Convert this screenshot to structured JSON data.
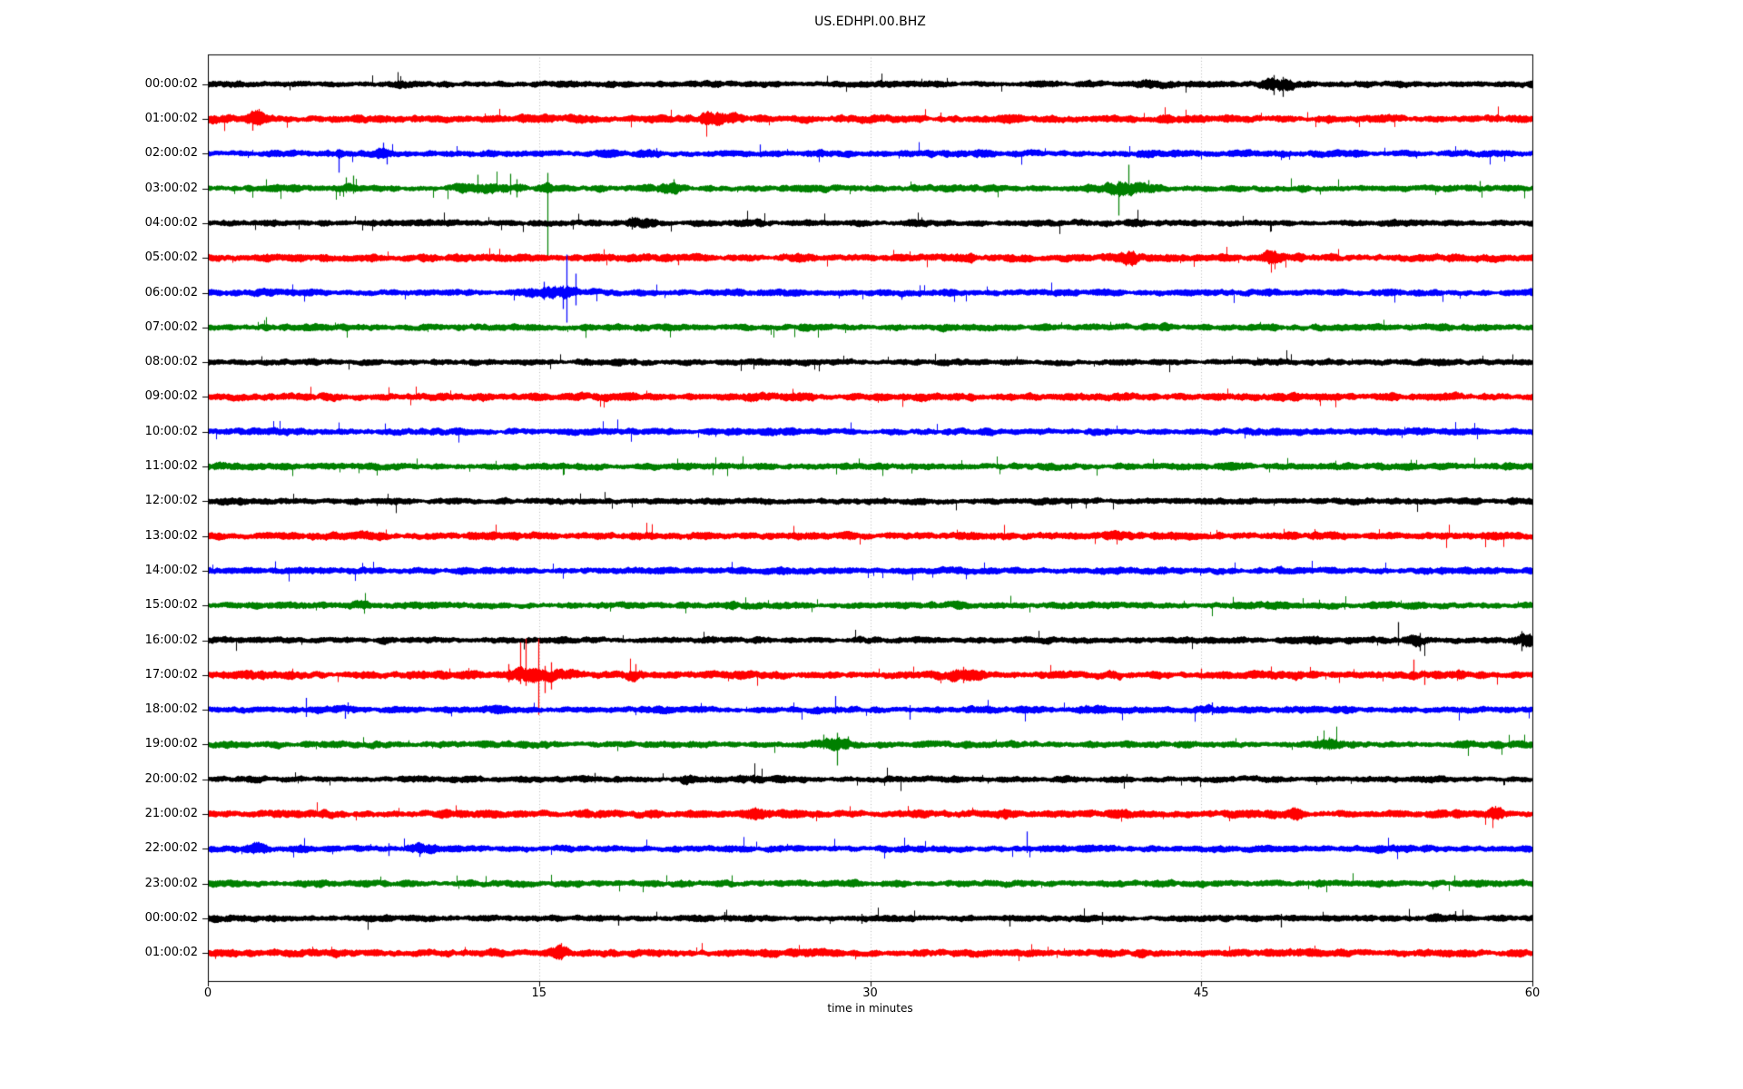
{
  "title": "US.EDHPI.00.BHZ",
  "xlabel": "time in minutes",
  "chart_data": {
    "type": "line",
    "subtype": "helicorder-seismogram",
    "title": "US.EDHPI.00.BHZ",
    "xlabel": "time in minutes",
    "x_range_minutes": [
      0,
      60
    ],
    "xticks": [
      0,
      15,
      30,
      45,
      60
    ],
    "xtick_labels": [
      "0",
      "15",
      "30",
      "45",
      "60"
    ],
    "grid": {
      "vertical_at_minutes": [
        15,
        30,
        45
      ],
      "style": "dotted",
      "color": "#b0b0b0"
    },
    "color_cycle": [
      "#000000",
      "#ff0000",
      "#0000ff",
      "#008000"
    ],
    "traces": [
      {
        "label": "00:00:02",
        "color": "#000000",
        "base_amp": 3.0,
        "events": [
          {
            "type": "burst",
            "m": 42.8,
            "dur": 1.8,
            "amp": 1.5
          },
          {
            "type": "burst",
            "m": 48.5,
            "dur": 1.1,
            "amp": 2.6
          },
          {
            "type": "spike",
            "m": 48.3,
            "up": 10,
            "down": 12
          },
          {
            "type": "spike",
            "m": 48.7,
            "up": 8,
            "down": 14
          }
        ]
      },
      {
        "label": "01:00:02",
        "color": "#ff0000",
        "base_amp": 3.6,
        "events": [
          {
            "type": "burst",
            "m": 2.15,
            "dur": 0.6,
            "amp": 2.2
          },
          {
            "type": "spike",
            "m": 2.0,
            "up": 6,
            "down": 13
          },
          {
            "type": "spike",
            "m": 2.3,
            "up": 11,
            "down": 6
          },
          {
            "type": "burst",
            "m": 22.9,
            "dur": 1.1,
            "amp": 1.9
          },
          {
            "type": "burst",
            "m": 23.9,
            "dur": 0.5,
            "amp": 1.6
          },
          {
            "type": "spike",
            "m": 33.2,
            "up": 7,
            "down": 4
          },
          {
            "type": "burst",
            "m": 47.4,
            "dur": 0.5,
            "amp": 1.6
          }
        ]
      },
      {
        "label": "02:00:02",
        "color": "#0000ff",
        "base_amp": 3.2,
        "events": [
          {
            "type": "spike",
            "m": 5.92,
            "up": 5,
            "down": 21
          },
          {
            "type": "burst",
            "m": 5.92,
            "dur": 0.3,
            "amp": 1.5
          },
          {
            "type": "burst",
            "m": 7.9,
            "dur": 0.8,
            "amp": 1.6
          },
          {
            "type": "spike",
            "m": 7.95,
            "up": 12,
            "down": 5
          },
          {
            "type": "spike",
            "m": 8.1,
            "up": 4,
            "down": 12
          },
          {
            "type": "spike",
            "m": 20.3,
            "up": 6,
            "down": 3
          },
          {
            "type": "spike",
            "m": 25.0,
            "up": 10,
            "down": 4
          }
        ]
      },
      {
        "label": "03:00:02",
        "color": "#008000",
        "base_amp": 3.2,
        "events": [
          {
            "type": "spike",
            "m": 6.25,
            "up": 12,
            "down": 5
          },
          {
            "type": "spike",
            "m": 6.6,
            "up": 14,
            "down": 6
          },
          {
            "type": "burst",
            "m": 6.4,
            "dur": 0.7,
            "amp": 1.5
          },
          {
            "type": "spike",
            "m": 12.2,
            "up": 15,
            "down": 6
          },
          {
            "type": "burst",
            "m": 13.0,
            "dur": 2.4,
            "amp": 1.7
          },
          {
            "type": "spike",
            "m": 13.7,
            "up": 16,
            "down": 7
          },
          {
            "type": "spike",
            "m": 14.0,
            "up": 10,
            "down": 10
          },
          {
            "type": "spike",
            "m": 15.38,
            "up": 17,
            "down": 76
          },
          {
            "type": "burst",
            "m": 15.38,
            "dur": 0.4,
            "amp": 1.8
          },
          {
            "type": "burst",
            "m": 21.0,
            "dur": 1.0,
            "amp": 1.8
          },
          {
            "type": "spike",
            "m": 21.1,
            "up": 10,
            "down": 6
          },
          {
            "type": "burst",
            "m": 41.5,
            "dur": 1.6,
            "amp": 2.1
          },
          {
            "type": "spike",
            "m": 41.25,
            "up": 8,
            "down": 30
          },
          {
            "type": "spike",
            "m": 41.7,
            "up": 26,
            "down": 8
          },
          {
            "type": "spike",
            "m": 42.6,
            "up": 9,
            "down": 5
          },
          {
            "type": "spike",
            "m": 57.6,
            "up": 8,
            "down": 4
          }
        ]
      },
      {
        "label": "04:00:02",
        "color": "#000000",
        "base_amp": 3.0,
        "events": [
          {
            "type": "burst",
            "m": 19.4,
            "dur": 1.5,
            "amp": 1.6
          },
          {
            "type": "spike",
            "m": 19.2,
            "up": 7,
            "down": 7
          },
          {
            "type": "burst",
            "m": 42.5,
            "dur": 3.0,
            "amp": 1.25
          }
        ]
      },
      {
        "label": "05:00:02",
        "color": "#ff0000",
        "base_amp": 3.6,
        "events": [
          {
            "type": "spike",
            "m": 21.3,
            "up": 4,
            "down": 8
          },
          {
            "type": "burst",
            "m": 41.8,
            "dur": 0.7,
            "amp": 2.0
          },
          {
            "type": "burst",
            "m": 48.1,
            "dur": 0.6,
            "amp": 2.0
          },
          {
            "type": "spike",
            "m": 48.0,
            "up": 9,
            "down": 5
          }
        ]
      },
      {
        "label": "06:00:02",
        "color": "#0000ff",
        "base_amp": 3.2,
        "events": [
          {
            "type": "burst",
            "m": 15.6,
            "dur": 1.9,
            "amp": 2.1
          },
          {
            "type": "spike",
            "m": 15.2,
            "up": 12,
            "down": 8
          },
          {
            "type": "spike",
            "m": 16.1,
            "up": 8,
            "down": 18
          },
          {
            "type": "spike",
            "m": 16.24,
            "up": 42,
            "down": 33
          },
          {
            "type": "spike",
            "m": 16.65,
            "up": 21,
            "down": 14
          }
        ]
      },
      {
        "label": "07:00:02",
        "color": "#008000",
        "base_amp": 3.2,
        "events": [
          {
            "type": "burst",
            "m": 3.2,
            "dur": 0.5,
            "amp": 1.3
          }
        ]
      },
      {
        "label": "08:00:02",
        "color": "#000000",
        "base_amp": 3.0,
        "events": []
      },
      {
        "label": "09:00:02",
        "color": "#ff0000",
        "base_amp": 3.6,
        "events": []
      },
      {
        "label": "10:00:02",
        "color": "#0000ff",
        "base_amp": 3.2,
        "events": []
      },
      {
        "label": "11:00:02",
        "color": "#008000",
        "base_amp": 3.2,
        "events": []
      },
      {
        "label": "12:00:02",
        "color": "#000000",
        "base_amp": 3.0,
        "events": []
      },
      {
        "label": "13:00:02",
        "color": "#ff0000",
        "base_amp": 3.6,
        "events": []
      },
      {
        "label": "14:00:02",
        "color": "#0000ff",
        "base_amp": 3.2,
        "events": []
      },
      {
        "label": "15:00:02",
        "color": "#008000",
        "base_amp": 3.2,
        "events": [
          {
            "type": "burst",
            "m": 6.7,
            "dur": 0.8,
            "amp": 1.5
          }
        ]
      },
      {
        "label": "16:00:02",
        "color": "#000000",
        "base_amp": 3.0,
        "events": [
          {
            "type": "burst",
            "m": 50.1,
            "dur": 0.5,
            "amp": 1.6
          },
          {
            "type": "spike",
            "m": 53.9,
            "up": 20,
            "down": 6
          },
          {
            "type": "burst",
            "m": 54.8,
            "dur": 0.9,
            "amp": 1.9
          },
          {
            "type": "spike",
            "m": 54.9,
            "up": 8,
            "down": 12
          },
          {
            "type": "burst",
            "m": 59.6,
            "dur": 0.9,
            "amp": 2.3
          },
          {
            "type": "spike",
            "m": 59.5,
            "up": 10,
            "down": 12
          }
        ]
      },
      {
        "label": "17:00:02",
        "color": "#ff0000",
        "base_amp": 3.6,
        "events": [
          {
            "type": "spike",
            "m": 13.6,
            "up": 12,
            "down": 8
          },
          {
            "type": "burst",
            "m": 14.8,
            "dur": 2.0,
            "amp": 2.3
          },
          {
            "type": "spike",
            "m": 14.15,
            "up": 36,
            "down": 10
          },
          {
            "type": "spike",
            "m": 14.4,
            "up": 40,
            "down": 12
          },
          {
            "type": "spike",
            "m": 14.97,
            "up": 40,
            "down": 44
          },
          {
            "type": "spike",
            "m": 15.25,
            "up": 10,
            "down": 20
          },
          {
            "type": "spike",
            "m": 15.55,
            "up": 14,
            "down": 16
          },
          {
            "type": "burst",
            "m": 19.35,
            "dur": 0.7,
            "amp": 1.9
          },
          {
            "type": "spike",
            "m": 19.35,
            "up": 12,
            "down": 7
          },
          {
            "type": "burst",
            "m": 34.4,
            "dur": 1.3,
            "amp": 1.9
          },
          {
            "type": "spike",
            "m": 34.2,
            "up": 9,
            "down": 9
          },
          {
            "type": "burst",
            "m": 41.2,
            "dur": 0.4,
            "amp": 1.5
          },
          {
            "type": "spike",
            "m": 45.0,
            "up": 7,
            "down": 5
          },
          {
            "type": "burst",
            "m": 49.3,
            "dur": 0.4,
            "amp": 1.6
          },
          {
            "type": "spike",
            "m": 54.6,
            "up": 17,
            "down": 6
          },
          {
            "type": "spike",
            "m": 55.1,
            "up": 5,
            "down": 11
          },
          {
            "type": "burst",
            "m": 56.6,
            "dur": 0.5,
            "amp": 1.5
          }
        ]
      },
      {
        "label": "18:00:02",
        "color": "#0000ff",
        "base_amp": 3.2,
        "events": [
          {
            "type": "spike",
            "m": 4.45,
            "up": 13,
            "down": 8
          },
          {
            "type": "spike",
            "m": 6.2,
            "up": 5,
            "down": 10
          },
          {
            "type": "spike",
            "m": 6.35,
            "up": 8,
            "down": 5
          },
          {
            "type": "spike",
            "m": 28.4,
            "up": 15,
            "down": 5
          },
          {
            "type": "spike",
            "m": 31.8,
            "up": 5,
            "down": 11
          },
          {
            "type": "burst",
            "m": 39.8,
            "dur": 1.2,
            "amp": 1.4
          },
          {
            "type": "burst",
            "m": 45.6,
            "dur": 0.8,
            "amp": 1.6
          },
          {
            "type": "spike",
            "m": 45.5,
            "up": 8,
            "down": 6
          }
        ]
      },
      {
        "label": "19:00:02",
        "color": "#008000",
        "base_amp": 3.2,
        "events": [
          {
            "type": "burst",
            "m": 28.4,
            "dur": 1.2,
            "amp": 1.9
          },
          {
            "type": "spike",
            "m": 27.9,
            "up": 11,
            "down": 5
          },
          {
            "type": "spike",
            "m": 28.5,
            "up": 13,
            "down": 23
          },
          {
            "type": "spike",
            "m": 29.0,
            "up": 9,
            "down": 5
          },
          {
            "type": "burst",
            "m": 33.3,
            "dur": 0.8,
            "amp": 1.3
          },
          {
            "type": "burst",
            "m": 50.9,
            "dur": 1.0,
            "amp": 1.7
          },
          {
            "type": "spike",
            "m": 50.8,
            "up": 8,
            "down": 6
          }
        ]
      },
      {
        "label": "20:00:02",
        "color": "#000000",
        "base_amp": 3.0,
        "events": [
          {
            "type": "spike",
            "m": 17.5,
            "up": 7,
            "down": 4
          },
          {
            "type": "burst",
            "m": 21.6,
            "dur": 0.8,
            "amp": 1.5
          },
          {
            "type": "burst",
            "m": 23.1,
            "dur": 0.6,
            "amp": 1.4
          },
          {
            "type": "burst",
            "m": 24.6,
            "dur": 0.7,
            "amp": 1.5
          }
        ]
      },
      {
        "label": "21:00:02",
        "color": "#ff0000",
        "base_amp": 3.6,
        "events": [
          {
            "type": "burst",
            "m": 24.9,
            "dur": 0.8,
            "amp": 1.6
          },
          {
            "type": "burst",
            "m": 36.1,
            "dur": 0.4,
            "amp": 1.4
          },
          {
            "type": "burst",
            "m": 49.4,
            "dur": 0.5,
            "amp": 1.8
          },
          {
            "type": "burst",
            "m": 58.4,
            "dur": 0.7,
            "amp": 1.8
          },
          {
            "type": "spike",
            "m": 58.3,
            "up": 9,
            "down": 5
          }
        ]
      },
      {
        "label": "22:00:02",
        "color": "#0000ff",
        "base_amp": 3.2,
        "events": [
          {
            "type": "burst",
            "m": 2.2,
            "dur": 0.5,
            "amp": 1.6
          },
          {
            "type": "spike",
            "m": 8.2,
            "up": 6,
            "down": 8
          },
          {
            "type": "burst",
            "m": 9.7,
            "dur": 0.9,
            "amp": 1.6
          },
          {
            "type": "spike",
            "m": 9.6,
            "up": 7,
            "down": 9
          },
          {
            "type": "spike",
            "m": 37.1,
            "up": 19,
            "down": 4
          }
        ]
      },
      {
        "label": "23:00:02",
        "color": "#008000",
        "base_amp": 3.2,
        "events": [
          {
            "type": "burst",
            "m": 5.0,
            "dur": 0.5,
            "amp": 1.2
          }
        ]
      },
      {
        "label": "00:00:02",
        "color": "#000000",
        "base_amp": 3.0,
        "events": [
          {
            "type": "spike",
            "m": 18.6,
            "up": 4,
            "down": 8
          },
          {
            "type": "spike",
            "m": 23.4,
            "up": 7,
            "down": 4
          },
          {
            "type": "spike",
            "m": 29.6,
            "up": 5,
            "down": 6
          },
          {
            "type": "spike",
            "m": 36.3,
            "up": 4,
            "down": 9
          },
          {
            "type": "spike",
            "m": 40.5,
            "up": 7,
            "down": 7
          },
          {
            "type": "spike",
            "m": 48.6,
            "up": 5,
            "down": 10
          },
          {
            "type": "burst",
            "m": 55.8,
            "dur": 1.2,
            "amp": 1.3
          },
          {
            "type": "spike",
            "m": 56.5,
            "up": 8,
            "down": 4
          }
        ]
      },
      {
        "label": "01:00:02",
        "color": "#ff0000",
        "base_amp": 3.6,
        "events": [
          {
            "type": "burst",
            "m": 16.05,
            "dur": 0.7,
            "amp": 1.9
          },
          {
            "type": "spike",
            "m": 16.0,
            "up": 11,
            "down": 8
          }
        ]
      }
    ]
  }
}
